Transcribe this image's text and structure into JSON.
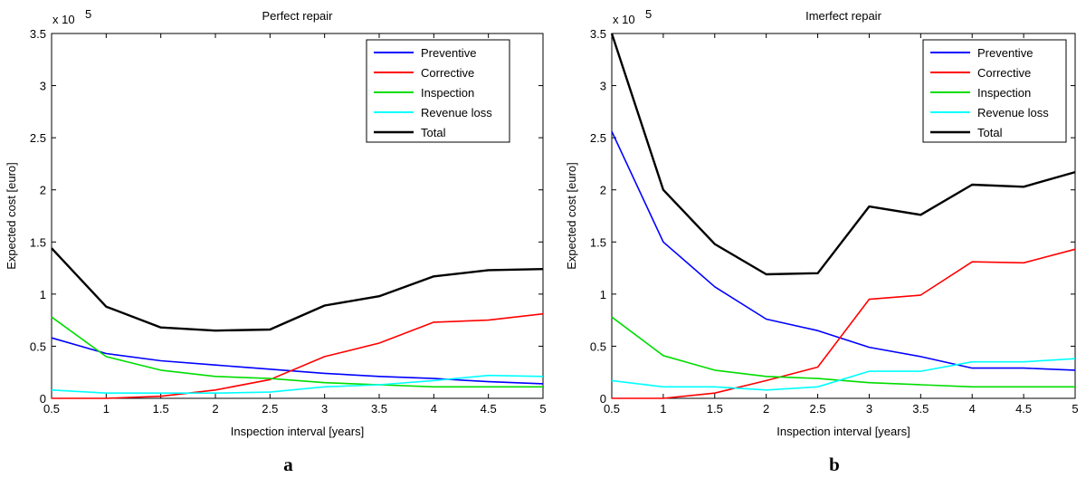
{
  "chart_data": [
    {
      "type": "line",
      "title": "Perfect repair",
      "xlabel": "Inspection interval [years]",
      "ylabel": "Expected cost [euro]",
      "exponent_label": "x 10",
      "exponent_power": "5",
      "panel_letter": "a",
      "xlim": [
        0.5,
        5
      ],
      "ylim": [
        0,
        3.5
      ],
      "x": [
        0.5,
        1,
        1.5,
        2,
        2.5,
        3,
        3.5,
        4,
        4.5,
        5
      ],
      "x_ticks": [
        "0.5",
        "1",
        "1.5",
        "2",
        "2.5",
        "3",
        "3.5",
        "4",
        "4.5",
        "5"
      ],
      "y_ticks": [
        "0",
        "0.5",
        "1",
        "1.5",
        "2",
        "2.5",
        "3",
        "3.5"
      ],
      "series": [
        {
          "name": "Preventive",
          "color": "#0000ff",
          "values": [
            0.58,
            0.43,
            0.36,
            0.32,
            0.28,
            0.24,
            0.21,
            0.19,
            0.16,
            0.14
          ]
        },
        {
          "name": "Corrective",
          "color": "#ff0000",
          "values": [
            0.0,
            0.0,
            0.02,
            0.08,
            0.18,
            0.4,
            0.53,
            0.73,
            0.75,
            0.81
          ]
        },
        {
          "name": "Inspection",
          "color": "#00dd00",
          "values": [
            0.78,
            0.4,
            0.27,
            0.21,
            0.19,
            0.15,
            0.13,
            0.11,
            0.11,
            0.11
          ]
        },
        {
          "name": "Revenue loss",
          "color": "#00ffff",
          "values": [
            0.08,
            0.05,
            0.05,
            0.05,
            0.06,
            0.11,
            0.13,
            0.17,
            0.22,
            0.21
          ]
        },
        {
          "name": "Total",
          "color": "#000000",
          "values": [
            1.44,
            0.88,
            0.68,
            0.65,
            0.66,
            0.89,
            0.98,
            1.17,
            1.23,
            1.24
          ]
        }
      ]
    },
    {
      "type": "line",
      "title": "Imerfect repair",
      "xlabel": "Inspection interval [years]",
      "ylabel": "Expected cost [euro]",
      "exponent_label": "x 10",
      "exponent_power": "5",
      "panel_letter": "b",
      "xlim": [
        0.5,
        5
      ],
      "ylim": [
        0,
        3.5
      ],
      "x": [
        0.5,
        1,
        1.5,
        2,
        2.5,
        3,
        3.5,
        4,
        4.5,
        5
      ],
      "x_ticks": [
        "0.5",
        "1",
        "1.5",
        "2",
        "2.5",
        "3",
        "3.5",
        "4",
        "4.5",
        "5"
      ],
      "y_ticks": [
        "0",
        "0.5",
        "1",
        "1.5",
        "2",
        "2.5",
        "3",
        "3.5"
      ],
      "series": [
        {
          "name": "Preventive",
          "color": "#0000ff",
          "values": [
            2.56,
            1.5,
            1.07,
            0.76,
            0.65,
            0.49,
            0.4,
            0.29,
            0.29,
            0.27
          ]
        },
        {
          "name": "Corrective",
          "color": "#ff0000",
          "values": [
            0.0,
            0.0,
            0.05,
            0.17,
            0.3,
            0.95,
            0.99,
            1.31,
            1.3,
            1.43
          ]
        },
        {
          "name": "Inspection",
          "color": "#00dd00",
          "values": [
            0.78,
            0.41,
            0.27,
            0.21,
            0.19,
            0.15,
            0.13,
            0.11,
            0.11,
            0.11
          ]
        },
        {
          "name": "Revenue loss",
          "color": "#00ffff",
          "values": [
            0.17,
            0.11,
            0.11,
            0.08,
            0.11,
            0.26,
            0.26,
            0.35,
            0.35,
            0.38
          ]
        },
        {
          "name": "Total",
          "color": "#000000",
          "values": [
            3.5,
            2.0,
            1.48,
            1.19,
            1.2,
            1.84,
            1.76,
            2.05,
            2.03,
            2.17
          ]
        }
      ]
    }
  ]
}
